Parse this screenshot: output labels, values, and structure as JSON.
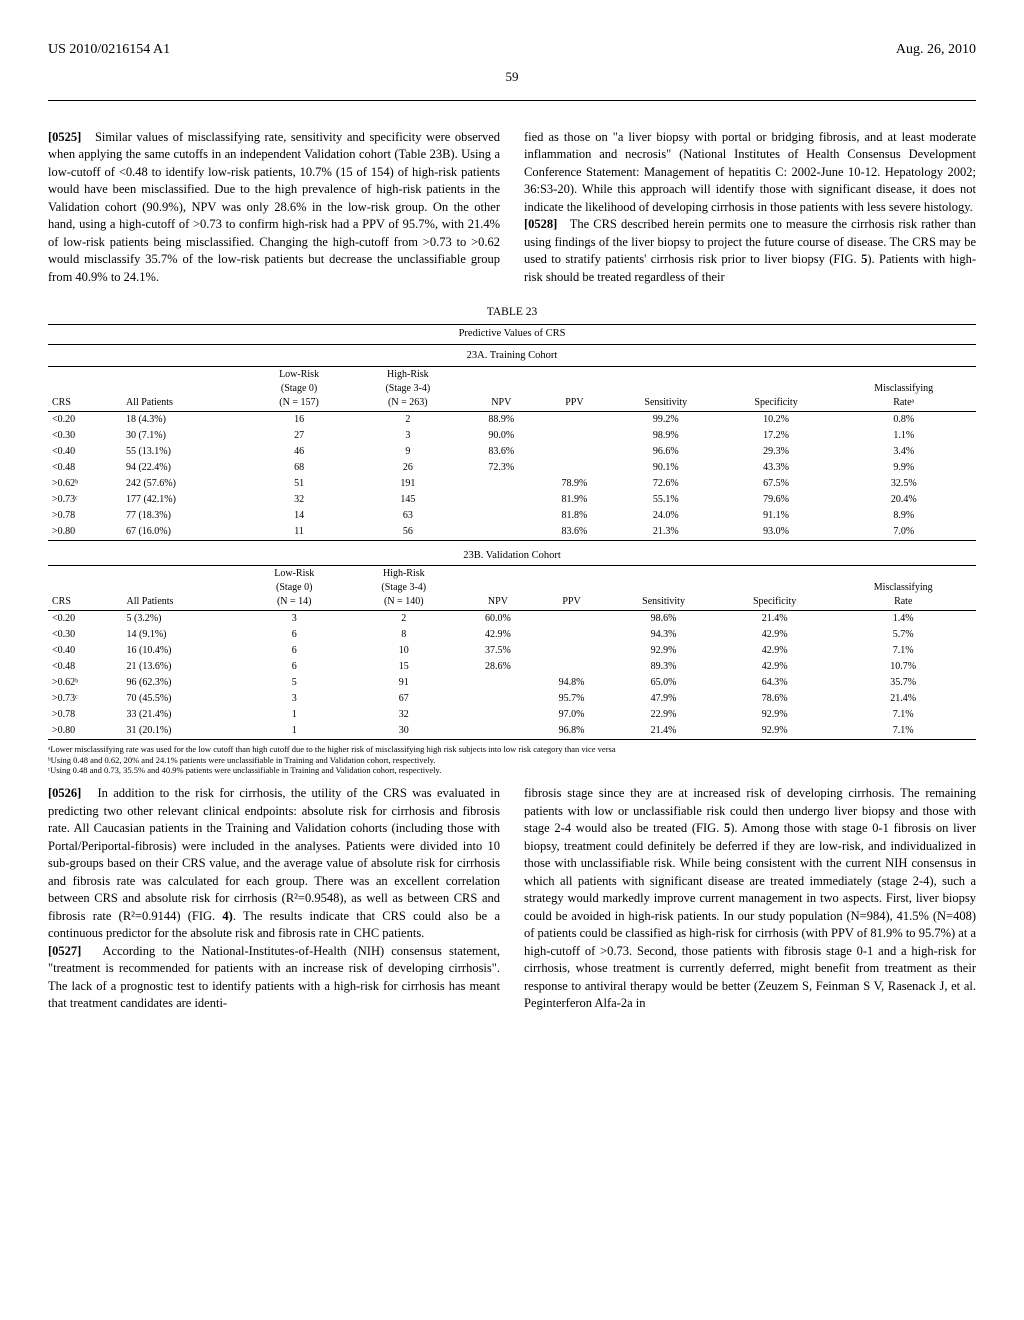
{
  "header": {
    "pubNumber": "US 2010/0216154 A1",
    "date": "Aug. 26, 2010",
    "pageNum": "59"
  },
  "paragraphs": {
    "p0525": {
      "num": "[0525]",
      "text": "Similar values of misclassifying rate, sensitivity and specificity were observed when applying the same cutoffs in an independent Validation cohort (Table 23B). Using a low-cutoff of <0.48 to identify low-risk patients, 10.7% (15 of 154) of high-risk patients would have been misclassified. Due to the high prevalence of high-risk patients in the Validation cohort (90.9%), NPV was only 28.6% in the low-risk group. On the other hand, using a high-cutoff of >0.73 to confirm high-risk had a PPV of 95.7%, with 21.4% of low-risk patients being misclassified. Changing the high-cutoff from >0.73 to >0.62 would misclassify 35.7% of the low-risk patients but decrease the unclassifiable group from 40.9% to 24.1%."
    },
    "p0526": {
      "num": "[0526]",
      "text": "In addition to the risk for cirrhosis, the utility of the CRS was evaluated in predicting two other relevant clinical endpoints: absolute risk for cirrhosis and fibrosis rate. All Caucasian patients in the Training and Validation cohorts (including those with Portal/Periportal-fibrosis) were included in the analyses. Patients were divided into 10 sub-groups based on their CRS value, and the average value of absolute risk for cirrhosis and fibrosis rate was calculated for each group. There was an excellent correlation between CRS and absolute risk for cirrhosis (R²=0.9548), as well as between CRS and fibrosis rate (R²=0.9144) (FIG. "
    },
    "p0526b": ". The results indicate that CRS could also be a continuous predictor for the absolute risk and fibrosis rate in CHC patients.",
    "p0527": {
      "num": "[0527]",
      "text": "According to the National-Institutes-of-Health (NIH) consensus statement, \"treatment is recommended for patients with an increase risk of developing cirrhosis\". The lack of a prognostic test to identify patients with a high-risk for cirrhosis has meant that treatment candidates are identi-"
    },
    "p_right_top": "fied as those on \"a liver biopsy with portal or bridging fibrosis, and at least moderate inflammation and necrosis\" (National Institutes of Health Consensus Development Conference Statement: Management of hepatitis C: 2002-June 10-12. Hepatology 2002; 36:S3-20). While this approach will identify those with significant disease, it does not indicate the likelihood of developing cirrhosis in those patients with less severe histology.",
    "p0528": {
      "num": "[0528]",
      "text": "The CRS described herein permits one to measure the cirrhosis risk rather than using findings of the liver biopsy to project the future course of disease. The CRS may be used to stratify patients' cirrhosis risk prior to liver biopsy (FIG. "
    },
    "p0528b": "). Patients with high-risk should be treated regardless of their",
    "p_right_bottom_a": "fibrosis stage since they are at increased risk of developing cirrhosis. The remaining patients with low or unclassifiable risk could then undergo liver biopsy and those with stage 2-4 would also be treated (FIG. ",
    "p_right_bottom_b": "). Among those with stage 0-1 fibrosis on liver biopsy, treatment could definitely be deferred if they are low-risk, and individualized in those with unclassifiable risk. While being consistent with the current NIH consensus in which all patients with significant disease are treated immediately (stage 2-4), such a strategy would markedly improve current management in two aspects. First, liver biopsy could be avoided in high-risk patients. In our study population (N=984), 41.5% (N=408) of patients could be classified as high-risk for cirrhosis (with PPV of 81.9% to 95.7%) at a high-cutoff of >0.73. Second, those patients with fibrosis stage 0-1 and a high-risk for cirrhosis, whose treatment is currently deferred, might benefit from treatment as their response to antiviral therapy would be better (Zeuzem S, Feinman S V, Rasenack J, et al. Peginterferon Alfa-2a in",
    "fig4": "4)",
    "fig5a": "5",
    "fig5b": "5"
  },
  "table": {
    "label": "TABLE 23",
    "caption": "Predictive Values of CRS",
    "subA": "23A. Training Cohort",
    "subB": "23B. Validation Cohort",
    "headersA": {
      "c1": "CRS",
      "c2": "All Patients",
      "c3a": "Low-Risk",
      "c3b": "(Stage 0)",
      "c3c": "(N = 157)",
      "c4a": "High-Risk",
      "c4b": "(Stage 3-4)",
      "c4c": "(N = 263)",
      "c5": "NPV",
      "c6": "PPV",
      "c7": "Sensitivity",
      "c8": "Specificity",
      "c9a": "Misclassifying",
      "c9b": "Rateᵃ"
    },
    "headersB": {
      "c1": "CRS",
      "c2": "All Patients",
      "c3a": "Low-Risk",
      "c3b": "(Stage 0)",
      "c3c": "(N = 14)",
      "c4a": "High-Risk",
      "c4b": "(Stage 3-4)",
      "c4c": "(N = 140)",
      "c5": "NPV",
      "c6": "PPV",
      "c7": "Sensitivity",
      "c8": "Specificity",
      "c9a": "Misclassifying",
      "c9b": "Rate"
    },
    "rowsA": [
      [
        "<0.20",
        "18 (4.3%)",
        "16",
        "2",
        "88.9%",
        "",
        "99.2%",
        "10.2%",
        "0.8%"
      ],
      [
        "<0.30",
        "30 (7.1%)",
        "27",
        "3",
        "90.0%",
        "",
        "98.9%",
        "17.2%",
        "1.1%"
      ],
      [
        "<0.40",
        "55 (13.1%)",
        "46",
        "9",
        "83.6%",
        "",
        "96.6%",
        "29.3%",
        "3.4%"
      ],
      [
        "<0.48",
        "94 (22.4%)",
        "68",
        "26",
        "72.3%",
        "",
        "90.1%",
        "43.3%",
        "9.9%"
      ],
      [
        ">0.62ᵇ",
        "242 (57.6%)",
        "51",
        "191",
        "",
        "78.9%",
        "72.6%",
        "67.5%",
        "32.5%"
      ],
      [
        ">0.73ᶜ",
        "177 (42.1%)",
        "32",
        "145",
        "",
        "81.9%",
        "55.1%",
        "79.6%",
        "20.4%"
      ],
      [
        ">0.78",
        "77 (18.3%)",
        "14",
        "63",
        "",
        "81.8%",
        "24.0%",
        "91.1%",
        "8.9%"
      ],
      [
        ">0.80",
        "67 (16.0%)",
        "11",
        "56",
        "",
        "83.6%",
        "21.3%",
        "93.0%",
        "7.0%"
      ]
    ],
    "rowsB": [
      [
        "<0.20",
        "5 (3.2%)",
        "3",
        "2",
        "60.0%",
        "",
        "98.6%",
        "21.4%",
        "1.4%"
      ],
      [
        "<0.30",
        "14 (9.1%)",
        "6",
        "8",
        "42.9%",
        "",
        "94.3%",
        "42.9%",
        "5.7%"
      ],
      [
        "<0.40",
        "16 (10.4%)",
        "6",
        "10",
        "37.5%",
        "",
        "92.9%",
        "42.9%",
        "7.1%"
      ],
      [
        "<0.48",
        "21 (13.6%)",
        "6",
        "15",
        "28.6%",
        "",
        "89.3%",
        "42.9%",
        "10.7%"
      ],
      [
        ">0.62ᵇ",
        "96 (62.3%)",
        "5",
        "91",
        "",
        "94.8%",
        "65.0%",
        "64.3%",
        "35.7%"
      ],
      [
        ">0.73ᶜ",
        "70 (45.5%)",
        "3",
        "67",
        "",
        "95.7%",
        "47.9%",
        "78.6%",
        "21.4%"
      ],
      [
        ">0.78",
        "33 (21.4%)",
        "1",
        "32",
        "",
        "97.0%",
        "22.9%",
        "92.9%",
        "7.1%"
      ],
      [
        ">0.80",
        "31 (20.1%)",
        "1",
        "30",
        "",
        "96.8%",
        "21.4%",
        "92.9%",
        "7.1%"
      ]
    ],
    "footnotes": {
      "a": "ᵃLower misclassifying rate was used for the low cutoff than high cutoff due to the higher risk of misclassifying high risk subjects into low risk category than vice versa",
      "b": "ᵇUsing 0.48 and 0.62, 20% and 24.1% patients were unclassifiable in Training and Validation cohort, respectively.",
      "c": "ᶜUsing 0.48 and 0.73, 35.5% and 40.9% patients were unclassifiable in Training and Validation cohort, respectively."
    }
  }
}
